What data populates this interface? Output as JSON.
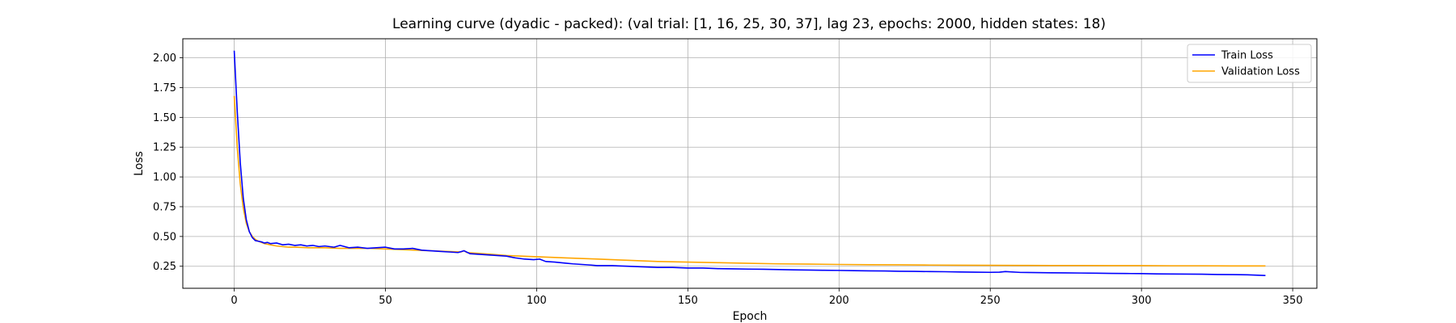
{
  "chart_data": {
    "type": "line",
    "title": "Learning curve (dyadic - packed): (val trial: [1, 16, 25, 30, 37], lag 23, epochs: 2000, hidden states: 18)",
    "xlabel": "Epoch",
    "ylabel": "Loss",
    "xlim": [
      -17,
      358
    ],
    "ylim": [
      0.065,
      2.16
    ],
    "xticks": [
      0,
      50,
      100,
      150,
      200,
      250,
      300,
      350
    ],
    "yticks": [
      0.25,
      0.5,
      0.75,
      1.0,
      1.25,
      1.5,
      1.75,
      2.0
    ],
    "xtick_labels": [
      "0",
      "50",
      "100",
      "150",
      "200",
      "250",
      "300",
      "350"
    ],
    "ytick_labels": [
      "0.25",
      "0.50",
      "0.75",
      "1.00",
      "1.25",
      "1.50",
      "1.75",
      "2.00"
    ],
    "grid": true,
    "legend_position": "top-right",
    "series": [
      {
        "name": "Train Loss",
        "color": "#0000ff",
        "x": [
          0,
          1,
          2,
          3,
          4,
          5,
          6,
          7,
          8,
          9,
          10,
          11,
          12,
          14,
          16,
          18,
          20,
          22,
          24,
          26,
          28,
          30,
          33,
          35,
          38,
          41,
          44,
          47,
          50,
          53,
          56,
          59,
          62,
          65,
          68,
          71,
          74,
          76,
          78,
          81,
          84,
          87,
          90,
          93,
          96,
          99,
          101,
          103,
          106,
          108,
          110,
          112,
          115,
          118,
          120,
          125,
          130,
          135,
          140,
          145,
          150,
          155,
          160,
          165,
          170,
          175,
          180,
          185,
          190,
          195,
          200,
          205,
          210,
          215,
          220,
          225,
          230,
          235,
          240,
          245,
          250,
          253,
          255,
          260,
          265,
          270,
          275,
          280,
          285,
          290,
          295,
          300,
          305,
          310,
          315,
          320,
          325,
          330,
          335,
          341
        ],
        "values": [
          2.06,
          1.55,
          1.12,
          0.82,
          0.64,
          0.54,
          0.49,
          0.465,
          0.46,
          0.455,
          0.445,
          0.45,
          0.44,
          0.445,
          0.43,
          0.435,
          0.425,
          0.43,
          0.42,
          0.425,
          0.415,
          0.42,
          0.41,
          0.425,
          0.405,
          0.41,
          0.4,
          0.405,
          0.41,
          0.395,
          0.395,
          0.4,
          0.385,
          0.38,
          0.375,
          0.37,
          0.365,
          0.38,
          0.355,
          0.35,
          0.345,
          0.34,
          0.335,
          0.32,
          0.31,
          0.305,
          0.31,
          0.29,
          0.285,
          0.28,
          0.275,
          0.27,
          0.265,
          0.26,
          0.255,
          0.255,
          0.25,
          0.245,
          0.24,
          0.24,
          0.235,
          0.235,
          0.23,
          0.228,
          0.226,
          0.225,
          0.222,
          0.22,
          0.218,
          0.216,
          0.215,
          0.213,
          0.211,
          0.21,
          0.208,
          0.207,
          0.205,
          0.204,
          0.202,
          0.2,
          0.199,
          0.2,
          0.205,
          0.198,
          0.197,
          0.195,
          0.194,
          0.193,
          0.192,
          0.19,
          0.189,
          0.188,
          0.186,
          0.185,
          0.184,
          0.183,
          0.181,
          0.18,
          0.178,
          0.172
        ]
      },
      {
        "name": "Validation Loss",
        "color": "#ffa500",
        "x": [
          0,
          1,
          2,
          3,
          4,
          5,
          6,
          7,
          8,
          9,
          10,
          12,
          14,
          16,
          18,
          20,
          25,
          30,
          35,
          40,
          45,
          50,
          55,
          60,
          65,
          70,
          75,
          76,
          77,
          80,
          85,
          90,
          95,
          100,
          110,
          120,
          130,
          140,
          150,
          160,
          170,
          180,
          190,
          200,
          210,
          220,
          230,
          240,
          250,
          260,
          270,
          280,
          290,
          300,
          310,
          320,
          330,
          341
        ],
        "values": [
          1.68,
          1.25,
          0.94,
          0.74,
          0.61,
          0.54,
          0.5,
          0.475,
          0.46,
          0.45,
          0.44,
          0.43,
          0.42,
          0.415,
          0.41,
          0.41,
          0.405,
          0.405,
          0.4,
          0.4,
          0.4,
          0.395,
          0.39,
          0.385,
          0.38,
          0.375,
          0.37,
          0.38,
          0.365,
          0.36,
          0.35,
          0.34,
          0.335,
          0.33,
          0.32,
          0.31,
          0.3,
          0.29,
          0.285,
          0.28,
          0.275,
          0.27,
          0.268,
          0.265,
          0.263,
          0.262,
          0.26,
          0.259,
          0.258,
          0.257,
          0.256,
          0.256,
          0.255,
          0.255,
          0.254,
          0.254,
          0.253,
          0.253
        ]
      }
    ]
  }
}
